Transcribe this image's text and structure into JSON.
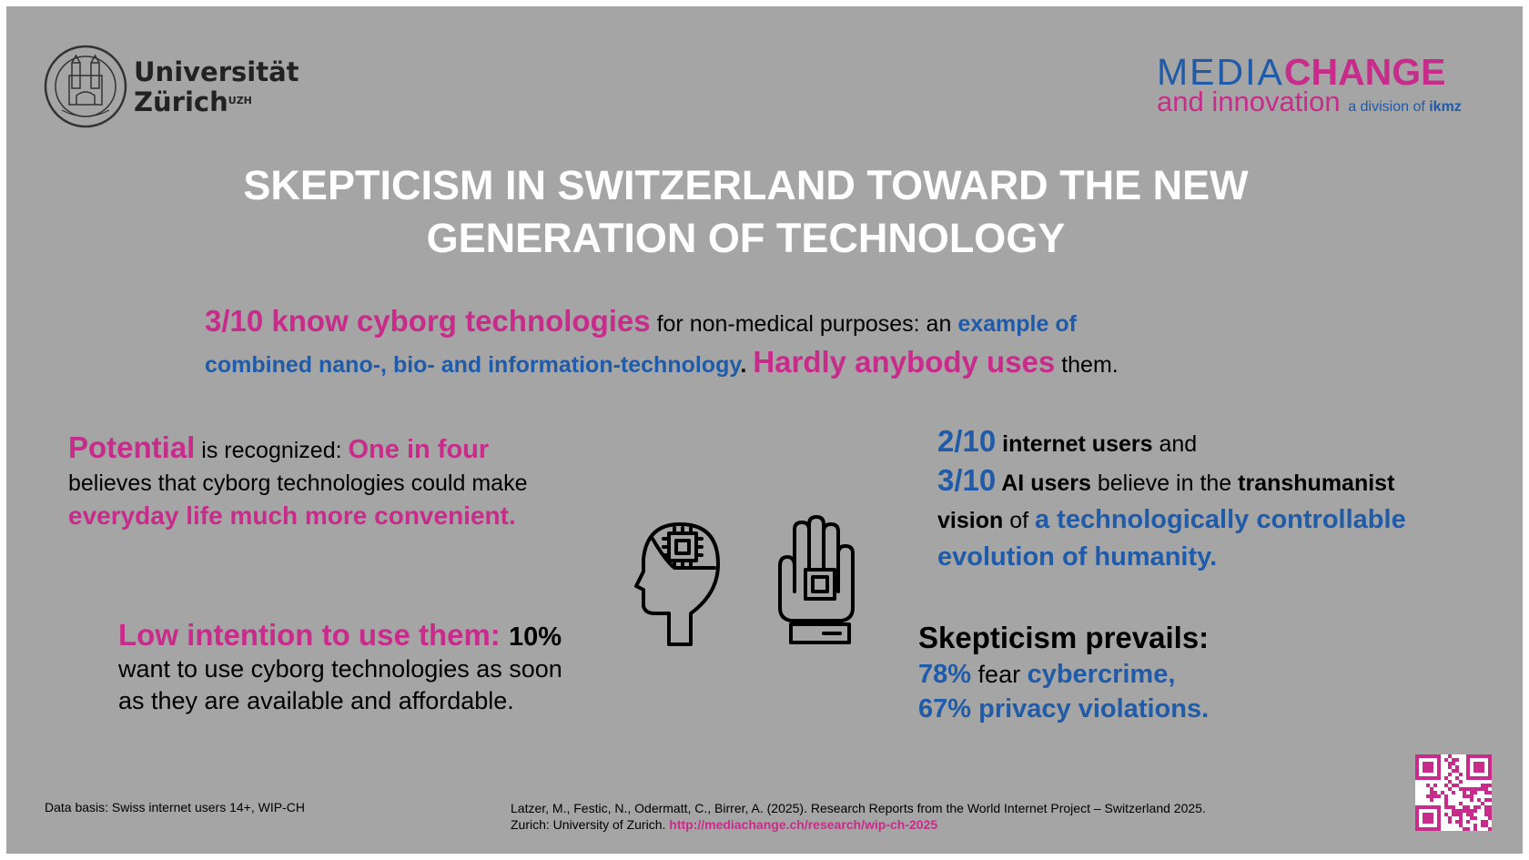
{
  "logo_uzh": {
    "line1": "Universität",
    "line2": "Zürich",
    "sup": "UZH"
  },
  "logo_mc": {
    "media": "MEDIA",
    "change": "CHANGE",
    "and_innovation": "and innovation",
    "division": "a division of ",
    "ikmz": "ikmz"
  },
  "title": {
    "line1": "SKEPTICISM IN SWITZERLAND TOWARD THE NEW",
    "line2": "GENERATION OF TECHNOLOGY"
  },
  "intro": {
    "p1": "3/10 know cyborg technologies",
    "p2": " for non-medical purposes: an ",
    "p3": "example of",
    "p4": "combined nano-, bio- and information-technology",
    "p5": ". ",
    "p6": "Hardly anybody uses",
    "p7": " them."
  },
  "left_block": {
    "p1": "Potential",
    "p2": " is recognized: ",
    "p3": "One in four",
    "p4": "believes that cyborg technologies could make",
    "p5": "everyday life much more convenient."
  },
  "right_block": {
    "p1": "2/10",
    "p2": " internet users",
    "p3": " and",
    "p4": "3/10",
    "p5": " AI users",
    "p6": " believe in the ",
    "p7": "transhumanist",
    "p8": "vision",
    "p9": " of ",
    "p10": "a technologically controllable",
    "p11": "evolution of humanity."
  },
  "low_block": {
    "p1": "Low intention to use them: ",
    "p2": "10%",
    "p3": "want to use cyborg technologies as soon",
    "p4": "as they are available and affordable."
  },
  "skeptic_block": {
    "head": "Skepticism prevails:",
    "s1": "78%",
    "s2": " fear ",
    "s3": "cybercrime,",
    "s4": "67% privacy violations."
  },
  "footer": {
    "data_basis": "Data basis: Swiss internet users 14+, WIP-CH",
    "citation_line1": "Latzer, M., Festic, N., Odermatt, C., Birrer, A. (2025). Research Reports from the World Internet Project – Switzerland 2025.",
    "citation_line2": "Zurich: University of Zurich. ",
    "link": "http://mediachange.ch/research/wip-ch-2025"
  },
  "colors": {
    "pink": "#c72c8a",
    "blue": "#1f5ba8",
    "background": "#a5a5a5"
  },
  "icons": [
    "uzh-seal-icon",
    "head-chip-icon",
    "hand-chip-icon",
    "qr-code-icon"
  ]
}
